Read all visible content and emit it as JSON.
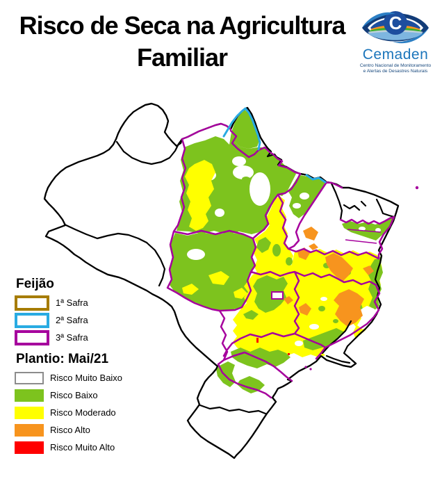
{
  "title": {
    "line1": "Risco de Seca na Agricultura",
    "line2": "Familiar"
  },
  "logo": {
    "name": "Cemaden",
    "subtitle_line1": "Centro Nacional de Monitoramento",
    "subtitle_line2": "e Alertas de Desastres Naturais"
  },
  "legend": {
    "crop_heading": "Feijão",
    "safras": [
      {
        "label": "1ª Safra",
        "color": "#A67C00"
      },
      {
        "label": "2ª Safra",
        "color": "#29ABE2"
      },
      {
        "label": "3ª Safra",
        "color": "#A6009D"
      }
    ],
    "planting_heading": "Plantio: Mai/21",
    "risks": [
      {
        "label": "Risco Muito Baixo",
        "color": "#FFFFFF",
        "border": "#8C8C8C"
      },
      {
        "label": "Risco Baixo",
        "color": "#7DC31E"
      },
      {
        "label": "Risco Moderado",
        "color": "#FFFF00"
      },
      {
        "label": "Risco Alto",
        "color": "#F7941E"
      },
      {
        "label": "Risco Muito Alto",
        "color": "#FF0000"
      }
    ]
  },
  "colors": {
    "risk_very_low": "#FFFFFF",
    "risk_low": "#7DC31E",
    "risk_moderate": "#FFFF00",
    "risk_high": "#F7941E",
    "risk_very_high": "#FF0000",
    "safra1": "#A67C00",
    "safra2": "#29ABE2",
    "safra3": "#A6009D",
    "state_border": "#000000",
    "swatch_border": "#8C8C8C",
    "logo_blue": "#1B75BB",
    "logo_navy": "#16477C"
  }
}
